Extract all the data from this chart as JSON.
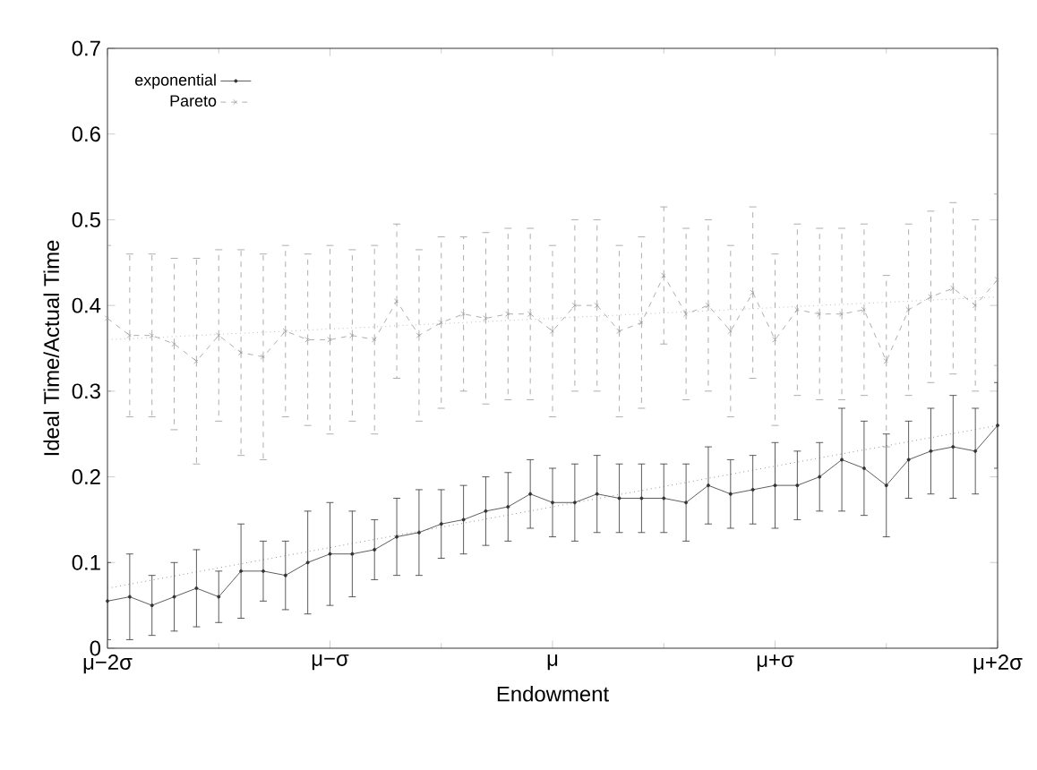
{
  "chart_data": {
    "type": "line",
    "xlabel": "Endowment",
    "ylabel": "Ideal Time/Actual Time",
    "ylim": [
      0,
      0.7
    ],
    "yticks": [
      0,
      0.1,
      0.2,
      0.3,
      0.4,
      0.5,
      0.6,
      0.7
    ],
    "categories": [
      "μ−2σ",
      null,
      null,
      null,
      null,
      null,
      null,
      null,
      null,
      null,
      "μ−σ",
      null,
      null,
      null,
      null,
      null,
      null,
      null,
      null,
      null,
      "μ",
      null,
      null,
      null,
      null,
      null,
      null,
      null,
      null,
      null,
      "μ+σ",
      null,
      null,
      null,
      null,
      null,
      null,
      null,
      null,
      null,
      "μ+2σ"
    ],
    "legend": "top left",
    "series": [
      {
        "name": "exponential",
        "color": "#333333",
        "marker": "circle",
        "line_style": "solid",
        "values": [
          0.055,
          0.06,
          0.05,
          0.06,
          0.07,
          0.06,
          0.09,
          0.09,
          0.085,
          0.1,
          0.11,
          0.11,
          0.115,
          0.13,
          0.135,
          0.145,
          0.15,
          0.16,
          0.165,
          0.18,
          0.17,
          0.17,
          0.18,
          0.175,
          0.175,
          0.175,
          0.17,
          0.19,
          0.18,
          0.185,
          0.19,
          0.19,
          0.2,
          0.22,
          0.21,
          0.19,
          0.22,
          0.23,
          0.235,
          0.23,
          0.26
        ],
        "errors": [
          0.045,
          0.05,
          0.035,
          0.04,
          0.045,
          0.03,
          0.055,
          0.035,
          0.04,
          0.06,
          0.06,
          0.05,
          0.035,
          0.045,
          0.05,
          0.04,
          0.04,
          0.04,
          0.04,
          0.04,
          0.04,
          0.045,
          0.045,
          0.04,
          0.04,
          0.04,
          0.045,
          0.045,
          0.04,
          0.04,
          0.05,
          0.04,
          0.04,
          0.06,
          0.055,
          0.06,
          0.045,
          0.05,
          0.06,
          0.05,
          0.05
        ]
      },
      {
        "name": "Pareto",
        "color": "#999999",
        "marker": "cross",
        "line_style": "dashed",
        "values": [
          0.385,
          0.365,
          0.365,
          0.355,
          0.335,
          0.365,
          0.345,
          0.34,
          0.37,
          0.36,
          0.36,
          0.365,
          0.36,
          0.405,
          0.365,
          0.38,
          0.39,
          0.385,
          0.39,
          0.39,
          0.37,
          0.4,
          0.4,
          0.37,
          0.38,
          0.435,
          0.39,
          0.4,
          0.37,
          0.415,
          0.36,
          0.395,
          0.39,
          0.39,
          0.395,
          0.335,
          0.395,
          0.41,
          0.42,
          0.4,
          0.43
        ],
        "errors": [
          0.085,
          0.095,
          0.095,
          0.1,
          0.12,
          0.1,
          0.12,
          0.12,
          0.1,
          0.1,
          0.11,
          0.1,
          0.11,
          0.09,
          0.1,
          0.1,
          0.09,
          0.1,
          0.1,
          0.1,
          0.1,
          0.1,
          0.1,
          0.1,
          0.1,
          0.08,
          0.1,
          0.1,
          0.1,
          0.1,
          0.1,
          0.1,
          0.1,
          0.1,
          0.1,
          0.1,
          0.1,
          0.1,
          0.1,
          0.1,
          0.1
        ]
      },
      {
        "color": "#555555",
        "marker": "none",
        "line_style": "dotted",
        "values": [
          0.07,
          null,
          null,
          null,
          null,
          null,
          null,
          null,
          null,
          null,
          null,
          null,
          null,
          null,
          null,
          null,
          null,
          null,
          null,
          null,
          null,
          null,
          null,
          null,
          null,
          null,
          null,
          null,
          null,
          null,
          null,
          null,
          null,
          null,
          null,
          null,
          null,
          null,
          null,
          null,
          0.26
        ]
      },
      {
        "color": "#999999",
        "marker": "none",
        "line_style": "dotted",
        "values": [
          0.36,
          null,
          null,
          null,
          null,
          null,
          null,
          null,
          null,
          null,
          null,
          null,
          null,
          null,
          null,
          null,
          null,
          null,
          null,
          null,
          null,
          null,
          null,
          null,
          null,
          null,
          null,
          null,
          null,
          null,
          null,
          null,
          null,
          null,
          null,
          null,
          null,
          null,
          null,
          null,
          0.41
        ]
      }
    ]
  }
}
